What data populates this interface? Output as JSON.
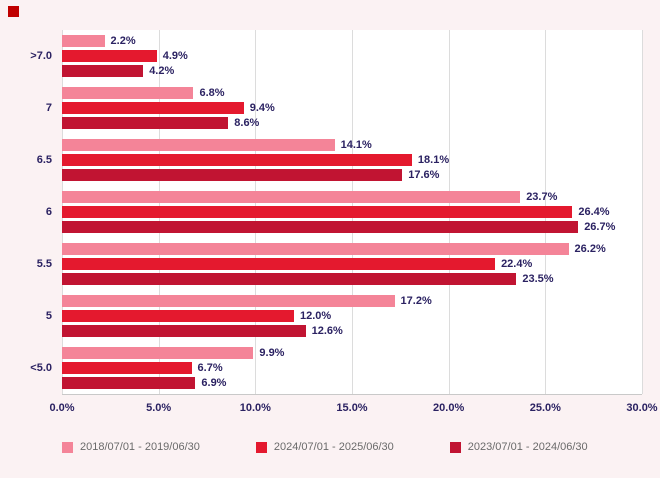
{
  "corner_marker": {
    "color": "#c00000"
  },
  "colors": {
    "background": "#fbf2f3",
    "plot_background": "#ffffff",
    "axis_text": "#2b2262",
    "legend_text": "#6a6a6a",
    "gridline": "#dcdcdc"
  },
  "chart_data": {
    "type": "bar",
    "orientation": "horizontal",
    "title": "",
    "xlabel": "",
    "ylabel": "",
    "categories": [
      ">7.0",
      "7",
      "6.5",
      "6",
      "5.5",
      "5",
      "<5.0"
    ],
    "series": [
      {
        "name": "2018/07/01 - 2019/06/30",
        "color": "#f48498",
        "values": [
          2.2,
          6.8,
          14.1,
          23.7,
          26.2,
          17.2,
          9.9
        ]
      },
      {
        "name": "2024/07/01 - 2025/06/30",
        "color": "#e4192e",
        "values": [
          4.9,
          9.4,
          18.1,
          26.4,
          22.4,
          12.0,
          6.7
        ]
      },
      {
        "name": "2023/07/01 - 2024/06/30",
        "color": "#c11432",
        "values": [
          4.2,
          8.6,
          17.6,
          26.7,
          23.5,
          12.6,
          6.9
        ]
      }
    ],
    "xlim": [
      0,
      30
    ],
    "xticks": [
      0,
      5,
      10,
      15,
      20,
      25,
      30
    ],
    "xtick_labels": [
      "0.0%",
      "5.0%",
      "10.0%",
      "15.0%",
      "20.0%",
      "25.0%",
      "30.0%"
    ],
    "value_suffix": "%",
    "grid": "vertical",
    "legend_position": "bottom"
  }
}
